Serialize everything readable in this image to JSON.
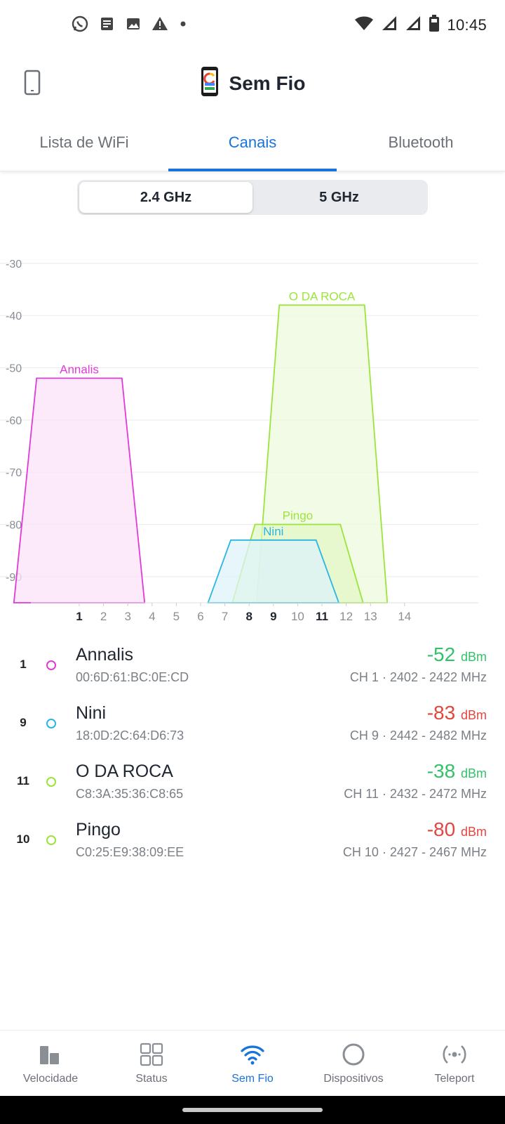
{
  "status_bar": {
    "time": "10:45",
    "left_icons": [
      "whatsapp-icon",
      "news-icon",
      "gallery-icon",
      "warning-icon",
      "dot-icon"
    ],
    "right_icons": [
      "wifi-signal-icon",
      "cell-signal-icon",
      "cell-signal-icon",
      "battery-icon"
    ]
  },
  "app_bar": {
    "title": "Sem Fio",
    "device_icon": "phone-outline-icon",
    "title_icon": "phone-color-icon"
  },
  "tabs": [
    {
      "label": "Lista de WiFi",
      "active": false
    },
    {
      "label": "Canais",
      "active": true
    },
    {
      "label": "Bluetooth",
      "active": false
    }
  ],
  "band": {
    "options": [
      "2.4 GHz",
      "5 GHz"
    ],
    "selected": "2.4 GHz"
  },
  "chart_data": {
    "type": "area",
    "ylim": [
      -95,
      -28
    ],
    "yticks": [
      -30,
      -40,
      -50,
      -60,
      -70,
      -80,
      -90
    ],
    "xticks": [
      {
        "label": "1",
        "bold": true
      },
      {
        "label": "2",
        "bold": false
      },
      {
        "label": "3",
        "bold": false
      },
      {
        "label": "4",
        "bold": false
      },
      {
        "label": "5",
        "bold": false
      },
      {
        "label": "6",
        "bold": false
      },
      {
        "label": "7",
        "bold": false
      },
      {
        "label": "8",
        "bold": true
      },
      {
        "label": "9",
        "bold": true
      },
      {
        "label": "10",
        "bold": false
      },
      {
        "label": "11",
        "bold": true
      },
      {
        "label": "12",
        "bold": false
      },
      {
        "label": "13",
        "bold": false
      },
      {
        "label": "14",
        "bold": false
      }
    ],
    "series": [
      {
        "name": "Annalis",
        "channel": 1,
        "value": -52,
        "color": "#e03ad8",
        "fill": "#fbe3f9"
      },
      {
        "name": "O DA ROCA",
        "channel": 11,
        "value": -38,
        "color": "#9be53a",
        "fill": "#eef9dc"
      },
      {
        "name": "Pingo",
        "channel": 10,
        "value": -80,
        "color": "#9be53a",
        "fill": "#e3f7c7"
      },
      {
        "name": "Nini",
        "channel": 9,
        "value": -83,
        "color": "#2bb5e0",
        "fill": "#ddf3fa"
      }
    ]
  },
  "networks": [
    {
      "channel": "1",
      "ssid": "Annalis",
      "mac": "00:6D:61:BC:0E:CD",
      "signal": "-52",
      "unit": "dBm",
      "freq": "CH 1 · 2402 - 2422 MHz",
      "dot_color": "#e03ad8",
      "signal_color": "#33c26a"
    },
    {
      "channel": "9",
      "ssid": "Nini",
      "mac": "18:0D:2C:64:D6:73",
      "signal": "-83",
      "unit": "dBm",
      "freq": "CH 9 · 2442 - 2482 MHz",
      "dot_color": "#2bb5e0",
      "signal_color": "#e2463f"
    },
    {
      "channel": "11",
      "ssid": "O DA ROCA",
      "mac": "C8:3A:35:36:C8:65",
      "signal": "-38",
      "unit": "dBm",
      "freq": "CH 11 · 2432 - 2472 MHz",
      "dot_color": "#9be53a",
      "signal_color": "#33c26a"
    },
    {
      "channel": "10",
      "ssid": "Pingo",
      "mac": "C0:25:E9:38:09:EE",
      "signal": "-80",
      "unit": "dBm",
      "freq": "CH 10 · 2427 - 2467 MHz",
      "dot_color": "#9be53a",
      "signal_color": "#e2463f"
    }
  ],
  "bottom_nav": [
    {
      "label": "Velocidade",
      "icon": "speed-bars-icon",
      "active": false
    },
    {
      "label": "Status",
      "icon": "grid-icon",
      "active": false
    },
    {
      "label": "Sem Fio",
      "icon": "wifi-icon",
      "active": true
    },
    {
      "label": "Dispositivos",
      "icon": "circle-icon",
      "active": false
    },
    {
      "label": "Teleport",
      "icon": "teleport-icon",
      "active": false
    }
  ],
  "colors": {
    "accent": "#1a73d9",
    "good_signal": "#33c26a",
    "bad_signal": "#e2463f"
  }
}
